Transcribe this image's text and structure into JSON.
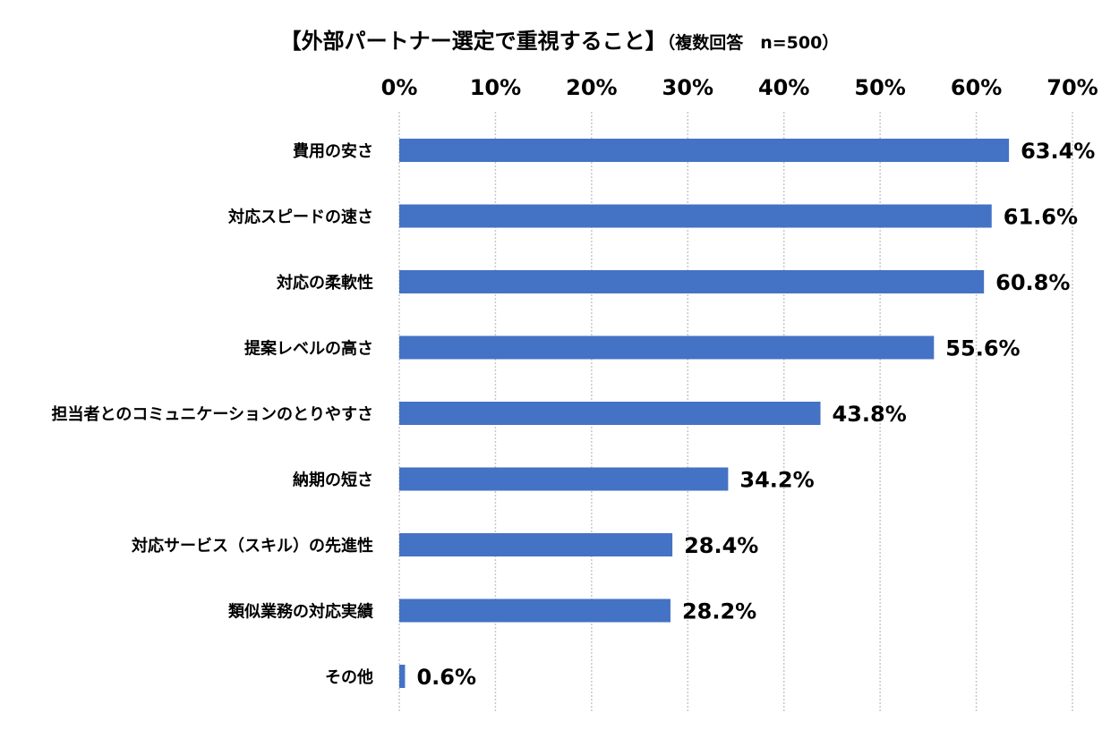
{
  "chart_data": {
    "type": "bar",
    "orientation": "horizontal",
    "title": "【外部パートナー選定で重視すること】",
    "subtitle": "（複数回答　n=500）",
    "categories": [
      "費用の安さ",
      "対応スピードの速さ",
      "対応の柔軟性",
      "提案レベルの高さ",
      "担当者とのコミュニケーションのとりやすさ",
      "納期の短さ",
      "対応サービス（スキル）の先進性",
      "類似業務の対応実績",
      "その他"
    ],
    "values": [
      63.4,
      61.6,
      60.8,
      55.6,
      43.8,
      34.2,
      28.4,
      28.2,
      0.6
    ],
    "value_labels": [
      "63.4%",
      "61.6%",
      "60.8%",
      "55.6%",
      "43.8%",
      "34.2%",
      "28.4%",
      "28.2%",
      "0.6%"
    ],
    "xticks": [
      "0%",
      "10%",
      "20%",
      "30%",
      "40%",
      "50%",
      "60%",
      "70%"
    ],
    "xlim": [
      0,
      70
    ],
    "xaxis_position": "top",
    "grid": true,
    "bar_color": "#4472C4",
    "grid_color": "#C8C8C8"
  }
}
